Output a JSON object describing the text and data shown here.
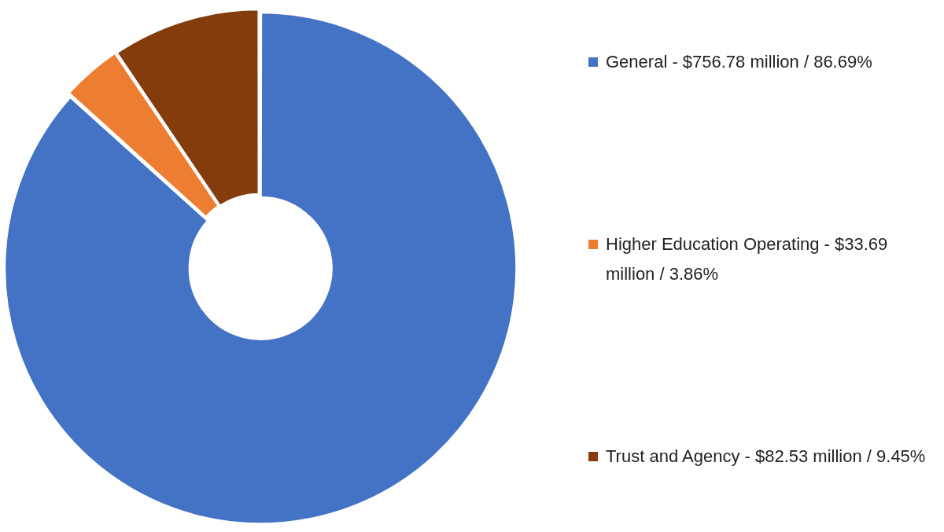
{
  "chart_data": {
    "type": "donut",
    "categories": [
      "General - $756.78 million / 86.69%",
      "Higher Education Operating - $33.69 million / 3.86%",
      "Trust and Agency - $82.53 million / 9.45%"
    ],
    "values": [
      86.69,
      3.86,
      9.45
    ],
    "colors": [
      "#4472c4",
      "#ed7d31",
      "#843c0c"
    ],
    "legend": "right"
  }
}
